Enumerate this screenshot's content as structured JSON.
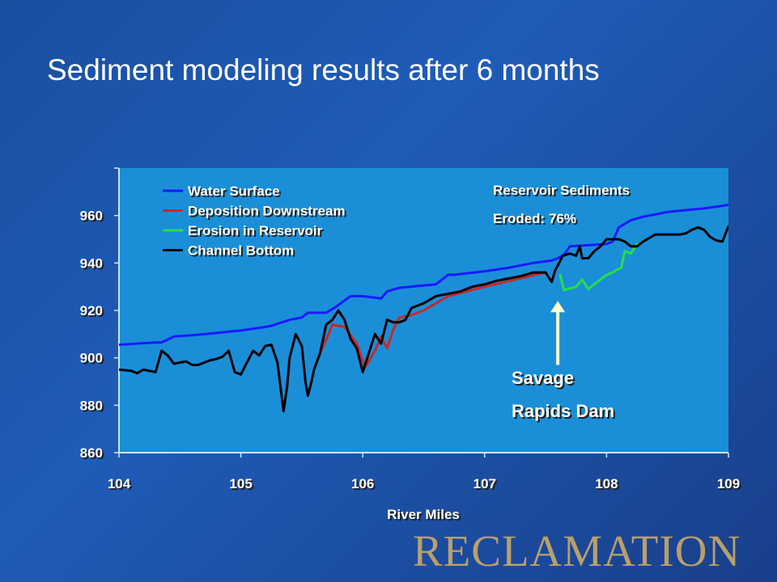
{
  "slide": {
    "title": "Sediment modeling results after 6 months",
    "logo_text": "RECLAMATION"
  },
  "colors": {
    "plot_background": "#1a8fd8",
    "water_surface": "#1a1aff",
    "deposition": "#c8282a",
    "erosion": "#22e04a",
    "channel_bottom": "#000000",
    "arrow": "#ffffcc",
    "logo": "#b8a06a"
  },
  "chart_data": {
    "type": "line",
    "title": "",
    "xlabel": "River Miles",
    "ylabel": "",
    "xlim": [
      104,
      109
    ],
    "ylim": [
      860,
      980
    ],
    "xticks": [
      104,
      105,
      106,
      107,
      108,
      109
    ],
    "yticks": [
      860,
      880,
      900,
      920,
      940,
      960
    ],
    "grid": false,
    "legend_position": "top-left",
    "series": [
      {
        "name": "Water Surface",
        "color": "#1a1aff",
        "x": [
          104.0,
          104.3,
          104.35,
          104.45,
          104.6,
          104.8,
          105.0,
          105.2,
          105.25,
          105.4,
          105.5,
          105.55,
          105.7,
          105.78,
          105.9,
          106.0,
          106.15,
          106.2,
          106.3,
          106.6,
          106.65,
          106.7,
          106.75,
          107.0,
          107.2,
          107.4,
          107.55,
          107.6,
          107.65,
          107.7,
          108.0,
          108.05,
          108.1,
          108.2,
          108.3,
          108.5,
          108.7,
          108.8,
          109.0
        ],
        "y": [
          905.5,
          906.5,
          906.5,
          909,
          909.5,
          910.5,
          911.5,
          913,
          913.5,
          916,
          917,
          919,
          919,
          921.5,
          926,
          926,
          925,
          928,
          929.5,
          931,
          933,
          935,
          935,
          936.5,
          938,
          940,
          941,
          942,
          943.5,
          947,
          948,
          949,
          955,
          958,
          959.5,
          961.5,
          962.5,
          963,
          964.5
        ]
      },
      {
        "name": "Deposition Downstream",
        "color": "#c8282a",
        "x": [
          105.62,
          105.65,
          105.72,
          105.75,
          105.85,
          105.95,
          106.02,
          106.1,
          106.15,
          106.2,
          106.25,
          106.3,
          106.4,
          106.5,
          106.7,
          107.0,
          107.25,
          107.5
        ],
        "y": [
          898,
          902,
          910,
          914,
          913,
          906,
          896,
          903,
          909,
          904,
          912,
          917,
          918,
          920,
          926,
          930,
          933,
          936
        ]
      },
      {
        "name": "Erosion in Reservoir",
        "color": "#22e04a",
        "x": [
          107.62,
          107.65,
          107.75,
          107.8,
          107.85,
          107.9,
          108.0,
          108.05,
          108.08,
          108.12,
          108.15,
          108.2,
          108.25
        ],
        "y": [
          935,
          928.5,
          930,
          933,
          929,
          931,
          935,
          936,
          937,
          938,
          945,
          944,
          948
        ]
      },
      {
        "name": "Channel Bottom",
        "color": "#000000",
        "x": [
          104.0,
          104.1,
          104.15,
          104.2,
          104.3,
          104.35,
          104.4,
          104.45,
          104.5,
          104.55,
          104.6,
          104.65,
          104.7,
          104.75,
          104.8,
          104.85,
          104.9,
          104.95,
          105.0,
          105.05,
          105.1,
          105.15,
          105.2,
          105.25,
          105.3,
          105.35,
          105.38,
          105.4,
          105.45,
          105.5,
          105.53,
          105.55,
          105.58,
          105.6,
          105.65,
          105.7,
          105.75,
          105.8,
          105.85,
          105.9,
          105.95,
          106.0,
          106.05,
          106.1,
          106.15,
          106.2,
          106.25,
          106.3,
          106.35,
          106.4,
          106.45,
          106.5,
          106.6,
          106.7,
          106.8,
          106.9,
          107.0,
          107.1,
          107.2,
          107.3,
          107.4,
          107.5,
          107.55,
          107.58,
          107.6,
          107.62,
          107.64,
          107.7,
          107.75,
          107.78,
          107.8,
          107.85,
          107.9,
          107.95,
          108.0,
          108.05,
          108.1,
          108.15,
          108.2,
          108.25,
          108.3,
          108.35,
          108.4,
          108.5,
          108.6,
          108.65,
          108.7,
          108.75,
          108.8,
          108.85,
          108.9,
          108.95,
          109.0
        ],
        "y": [
          895,
          894.5,
          893.5,
          895,
          894,
          903,
          901,
          897.5,
          898,
          898.5,
          897,
          897,
          898,
          899,
          899.5,
          900.5,
          903,
          894,
          893,
          898,
          903,
          901,
          905,
          905.5,
          898,
          877.5,
          888,
          900,
          910,
          905,
          890,
          884,
          890,
          895,
          902,
          914,
          916,
          920,
          916,
          908,
          904,
          894,
          902,
          910,
          906,
          916,
          915,
          915,
          916,
          921,
          922,
          923,
          926,
          927,
          928,
          930,
          931,
          932.5,
          933.5,
          934.5,
          936,
          936,
          932,
          937,
          939,
          941,
          943,
          944,
          943,
          947,
          942,
          942,
          945,
          947,
          950,
          950,
          950,
          949,
          947,
          947,
          949,
          950.5,
          952,
          952,
          952,
          952.5,
          954,
          955,
          954,
          951,
          949.5,
          949,
          955.5
        ]
      }
    ],
    "annotations": [
      {
        "text": "Reservoir Sediments",
        "position": "top-right"
      },
      {
        "text": "Eroded: 76%",
        "position": "top-right"
      },
      {
        "text": "Savage",
        "x": 107.6
      },
      {
        "text": "Rapids Dam",
        "x": 107.6
      }
    ],
    "arrow": {
      "x": 107.6,
      "from_y": 897,
      "to_y": 924
    }
  }
}
